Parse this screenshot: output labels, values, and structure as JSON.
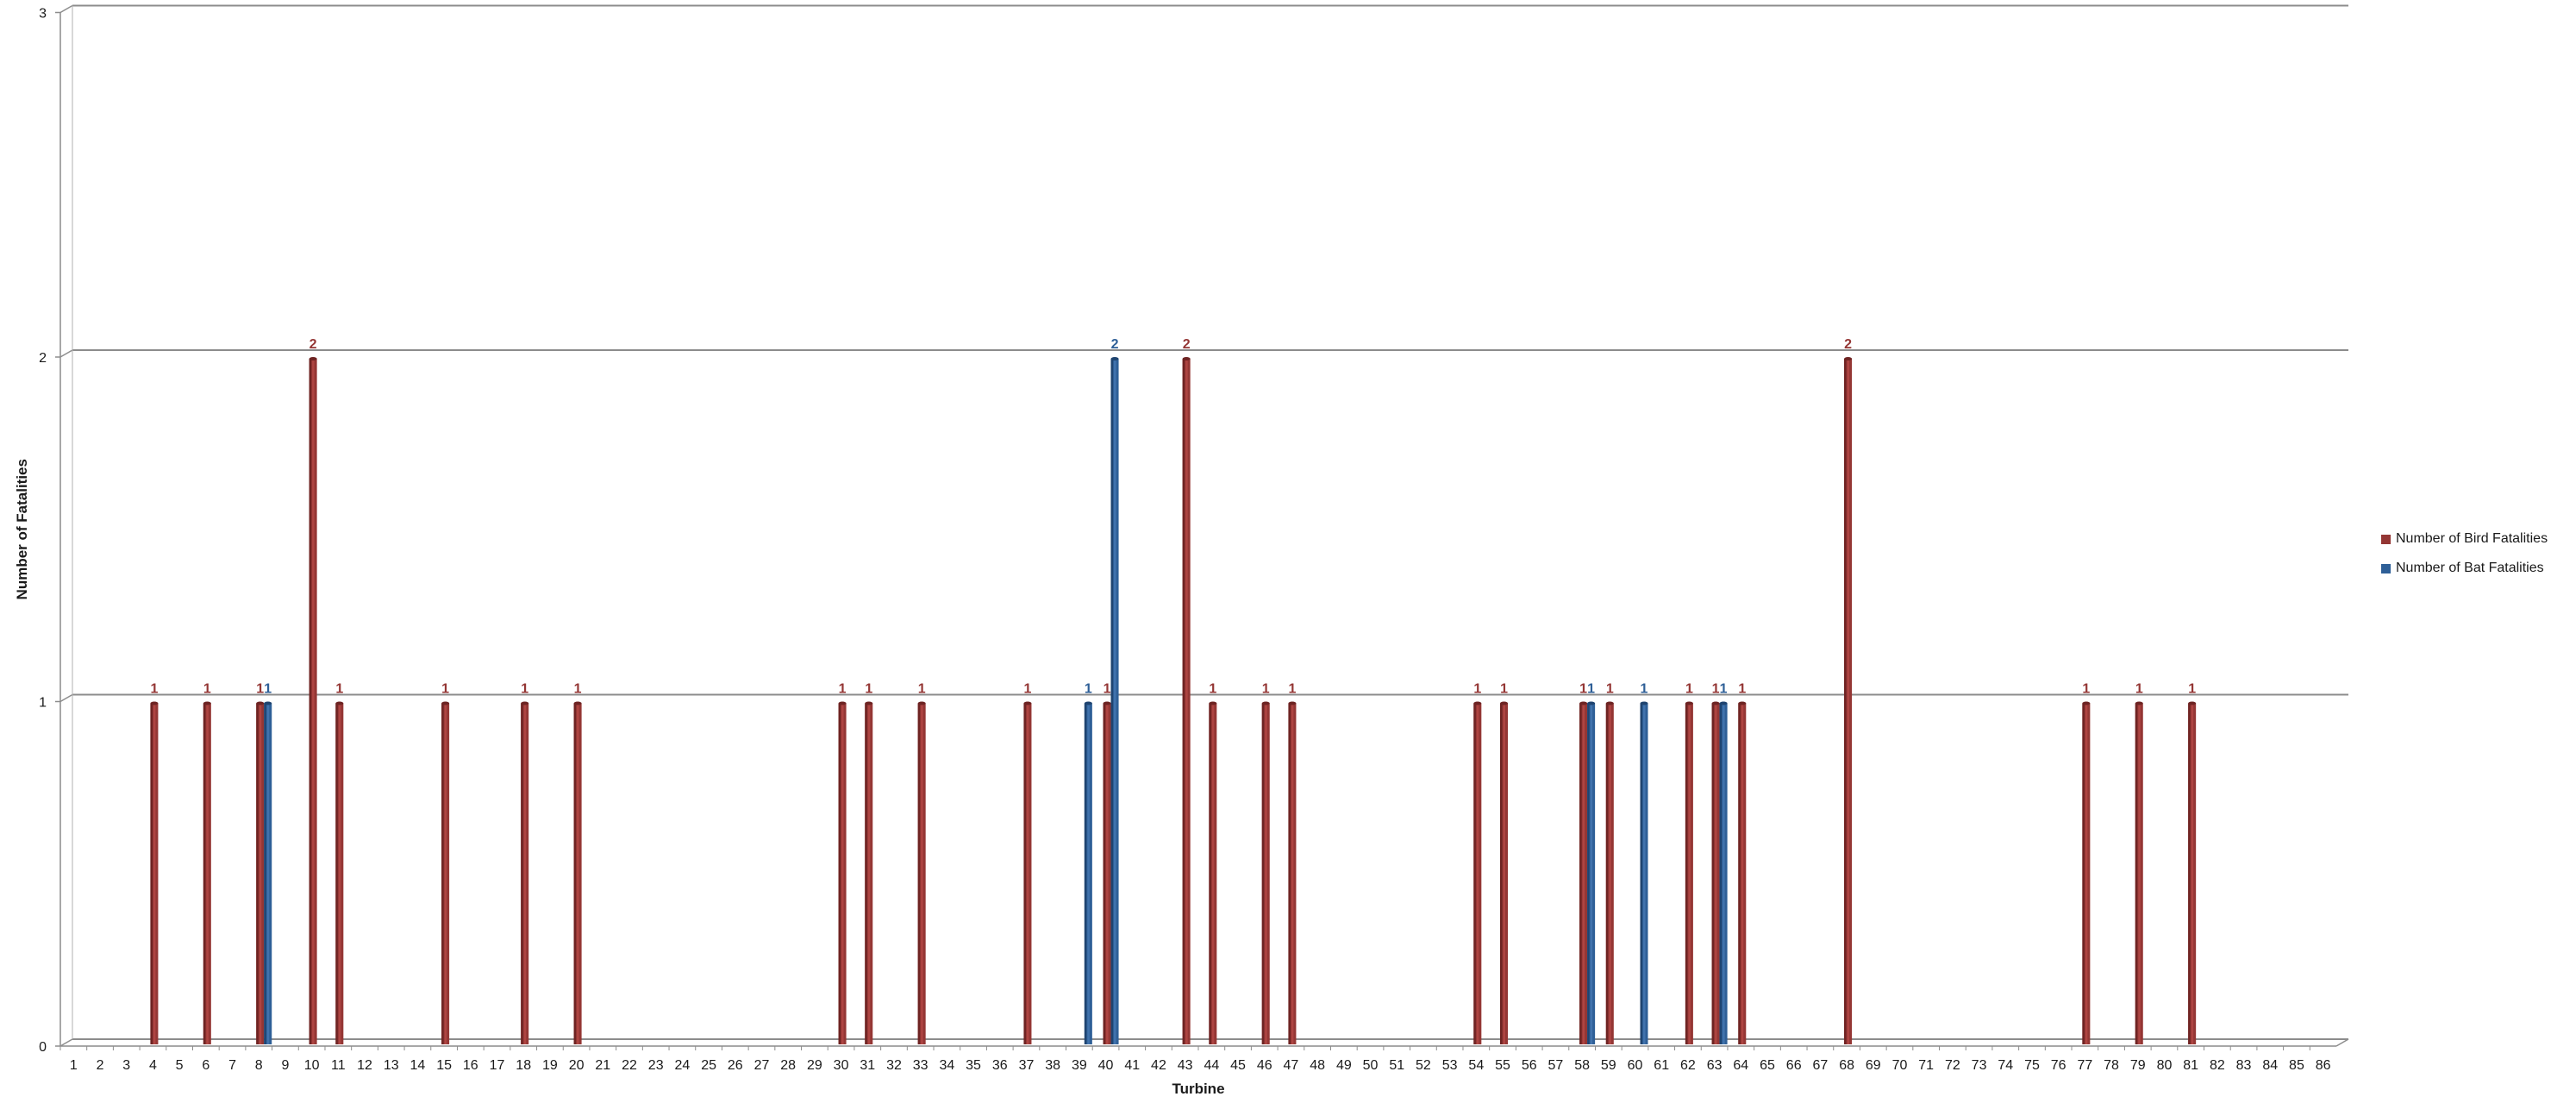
{
  "chart_data": {
    "type": "bar",
    "xlabel": "Turbine",
    "ylabel": "Number of Fatalities",
    "ylim": [
      0,
      3
    ],
    "yticks": [
      0,
      1,
      2,
      3
    ],
    "grid": "horizontal",
    "legend_position": "right",
    "categories": [
      "1",
      "2",
      "3",
      "4",
      "5",
      "6",
      "7",
      "8",
      "9",
      "10",
      "11",
      "12",
      "13",
      "14",
      "15",
      "16",
      "17",
      "18",
      "19",
      "20",
      "21",
      "22",
      "23",
      "24",
      "25",
      "26",
      "27",
      "28",
      "29",
      "30",
      "31",
      "32",
      "33",
      "34",
      "35",
      "36",
      "37",
      "38",
      "39",
      "40",
      "41",
      "42",
      "43",
      "44",
      "45",
      "46",
      "47",
      "48",
      "49",
      "50",
      "51",
      "52",
      "53",
      "54",
      "55",
      "56",
      "57",
      "58",
      "59",
      "60",
      "61",
      "62",
      "63",
      "64",
      "65",
      "66",
      "67",
      "68",
      "69",
      "70",
      "71",
      "72",
      "73",
      "74",
      "75",
      "76",
      "77",
      "78",
      "79",
      "80",
      "81",
      "82",
      "83",
      "84",
      "85",
      "86"
    ],
    "series": [
      {
        "name": "Number of Bird Fatalities",
        "color": "#943634",
        "values": [
          0,
          0,
          0,
          1,
          0,
          1,
          0,
          1,
          0,
          2,
          1,
          0,
          0,
          0,
          1,
          0,
          0,
          1,
          0,
          1,
          0,
          0,
          0,
          0,
          0,
          0,
          0,
          0,
          0,
          1,
          1,
          0,
          1,
          0,
          0,
          0,
          1,
          0,
          0,
          1,
          0,
          0,
          2,
          1,
          0,
          1,
          1,
          0,
          0,
          0,
          0,
          0,
          0,
          1,
          1,
          0,
          0,
          1,
          1,
          0,
          0,
          1,
          1,
          1,
          0,
          0,
          0,
          2,
          0,
          0,
          0,
          0,
          0,
          0,
          0,
          0,
          1,
          0,
          1,
          0,
          1,
          0,
          0,
          0,
          0,
          0
        ]
      },
      {
        "name": "Number of Bat Fatalities",
        "color": "#2e5f97",
        "values": [
          0,
          0,
          0,
          0,
          0,
          0,
          0,
          1,
          0,
          0,
          0,
          0,
          0,
          0,
          0,
          0,
          0,
          0,
          0,
          0,
          0,
          0,
          0,
          0,
          0,
          0,
          0,
          0,
          0,
          0,
          0,
          0,
          0,
          0,
          0,
          0,
          0,
          0,
          1,
          2,
          0,
          0,
          0,
          0,
          0,
          0,
          0,
          0,
          0,
          0,
          0,
          0,
          0,
          0,
          0,
          0,
          0,
          1,
          0,
          1,
          0,
          0,
          1,
          0,
          0,
          0,
          0,
          0,
          0,
          0,
          0,
          0,
          0,
          0,
          0,
          0,
          0,
          0,
          0,
          0,
          0,
          0,
          0,
          0,
          0,
          0
        ]
      }
    ]
  }
}
